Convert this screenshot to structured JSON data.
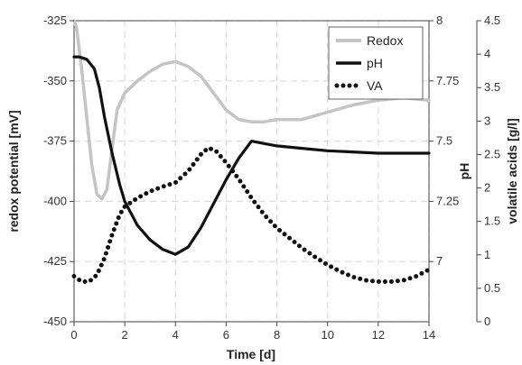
{
  "chart_data": {
    "type": "line",
    "xlabel": "Time [d]",
    "ylabel_left": "redox potential [mV]",
    "ylabel_pH": "pH",
    "ylabel_va": "volatile acids [g/l]",
    "xlim": [
      0,
      14
    ],
    "ylim_left": [
      -450,
      -325
    ],
    "ylim_pH": [
      6.75,
      8
    ],
    "ylim_va": [
      0,
      4.5
    ],
    "x_ticks": [
      "0",
      "2",
      "4",
      "6",
      "8",
      "10",
      "12",
      "14"
    ],
    "left_ticks": [
      "-325",
      "-350",
      "-375",
      "-400",
      "-425",
      "-450"
    ],
    "pH_ticks": [
      "8",
      "7.75",
      "7.5",
      "7.25",
      "7"
    ],
    "va_ticks": [
      "4.5",
      "4",
      "3.5",
      "3",
      "2.5",
      "2",
      "1.5",
      "1",
      "0.5",
      "0"
    ],
    "grid": true,
    "legend_position": "top-right",
    "colors": {
      "redox": "#c4c4c4",
      "pH": "#111111",
      "va": "#111111",
      "grid": "#dddddd"
    },
    "series": [
      {
        "name": "Redox",
        "axis": "left",
        "style": "solid-light",
        "x": [
          0,
          0.1,
          0.3,
          0.5,
          0.7,
          0.9,
          1.1,
          1.3,
          1.5,
          1.7,
          2,
          2.5,
          3,
          3.5,
          4,
          4.5,
          5,
          5.5,
          6,
          6.5,
          7,
          7.5,
          8,
          9,
          10,
          11,
          12,
          13,
          14
        ],
        "values": [
          -325,
          -328,
          -345,
          -365,
          -385,
          -397,
          -399,
          -395,
          -378,
          -362,
          -355,
          -350,
          -346,
          -343,
          -342,
          -344,
          -348,
          -355,
          -362,
          -366,
          -367,
          -367,
          -366,
          -366,
          -363,
          -360,
          -358,
          -357,
          -358
        ]
      },
      {
        "name": "pH",
        "axis": "pH",
        "style": "solid-dark",
        "x": [
          0,
          0.2,
          0.5,
          0.8,
          1,
          1.2,
          1.5,
          1.8,
          2,
          2.5,
          3,
          3.5,
          4,
          4.5,
          5,
          5.5,
          6,
          6.5,
          7,
          7.5,
          8,
          9,
          10,
          11,
          12,
          13,
          14
        ],
        "values": [
          7.85,
          7.85,
          7.84,
          7.8,
          7.72,
          7.6,
          7.45,
          7.32,
          7.25,
          7.15,
          7.09,
          7.05,
          7.03,
          7.06,
          7.14,
          7.24,
          7.34,
          7.43,
          7.5,
          7.49,
          7.48,
          7.47,
          7.46,
          7.455,
          7.45,
          7.45,
          7.45
        ]
      },
      {
        "name": "VA",
        "axis": "va",
        "style": "dotted",
        "x": [
          0,
          0.3,
          0.6,
          0.9,
          1.2,
          1.5,
          1.8,
          2,
          2.5,
          3,
          3.5,
          4,
          4.5,
          5,
          5.3,
          5.6,
          6,
          6.5,
          7,
          7.5,
          8,
          8.5,
          9,
          9.5,
          10,
          10.5,
          11,
          11.5,
          12,
          12.5,
          13,
          13.5,
          14
        ],
        "values": [
          0.68,
          0.6,
          0.6,
          0.7,
          0.95,
          1.3,
          1.6,
          1.72,
          1.85,
          1.95,
          2.02,
          2.08,
          2.25,
          2.5,
          2.6,
          2.55,
          2.38,
          2.13,
          1.85,
          1.6,
          1.4,
          1.25,
          1.1,
          0.97,
          0.85,
          0.75,
          0.67,
          0.62,
          0.6,
          0.6,
          0.62,
          0.68,
          0.78
        ]
      }
    ]
  }
}
